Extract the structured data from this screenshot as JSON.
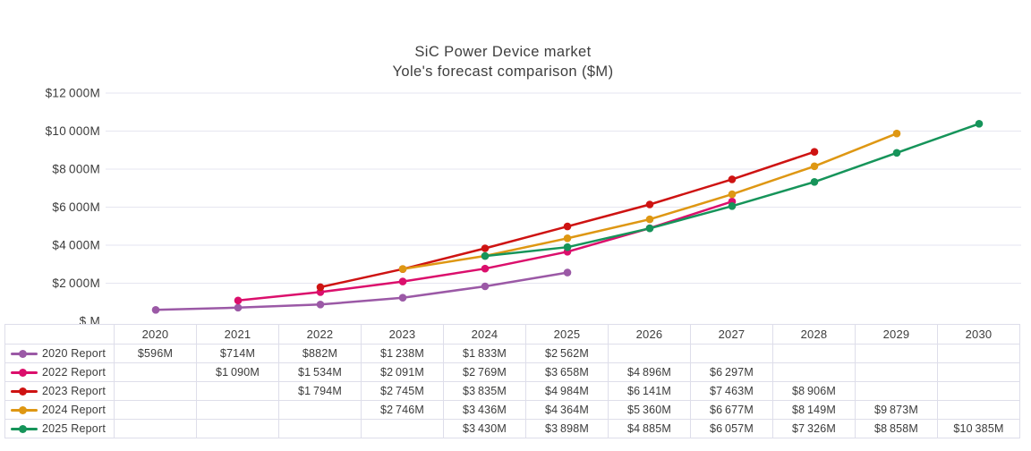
{
  "title": {
    "line1": "SiC Power Device market",
    "line2": "Yole's forecast comparison ($M)"
  },
  "chart_data": {
    "type": "line",
    "title": "SiC Power Device market — Yole's forecast comparison ($M)",
    "x": [
      2020,
      2021,
      2022,
      2023,
      2024,
      2025,
      2026,
      2027,
      2028,
      2029,
      2030
    ],
    "ylim": [
      0,
      12000
    ],
    "grid": "horizontal",
    "legend_position": "left-column-of-table",
    "yticks": [
      {
        "label": "$12 000M",
        "value": 12000
      },
      {
        "label": "$10 000M",
        "value": 10000
      },
      {
        "label": "$8 000M",
        "value": 8000
      },
      {
        "label": "$6 000M",
        "value": 6000
      },
      {
        "label": "$4 000M",
        "value": 4000
      },
      {
        "label": "$2 000M",
        "value": 2000
      },
      {
        "label": "$ M",
        "value": 0
      }
    ],
    "series": [
      {
        "name": "2020 Report",
        "color": "#9b59a6",
        "values": [
          596,
          714,
          882,
          1238,
          1833,
          2562,
          null,
          null,
          null,
          null,
          null
        ]
      },
      {
        "name": "2022 Report",
        "color": "#db0f6c",
        "values": [
          null,
          1090,
          1534,
          2091,
          2769,
          3658,
          4896,
          6297,
          null,
          null,
          null
        ]
      },
      {
        "name": "2023 Report",
        "color": "#ce1312",
        "values": [
          null,
          null,
          1794,
          2745,
          3835,
          4984,
          6141,
          7463,
          8906,
          null,
          null
        ]
      },
      {
        "name": "2024 Report",
        "color": "#de9713",
        "values": [
          null,
          null,
          null,
          2746,
          3436,
          4364,
          5360,
          6677,
          8149,
          9873,
          null
        ]
      },
      {
        "name": "2025 Report",
        "color": "#16945a",
        "values": [
          null,
          null,
          null,
          null,
          3430,
          3898,
          4885,
          6057,
          7326,
          8858,
          10385
        ]
      }
    ]
  },
  "table": {
    "columns": [
      "2020",
      "2021",
      "2022",
      "2023",
      "2024",
      "2025",
      "2026",
      "2027",
      "2028",
      "2029",
      "2030"
    ],
    "rows": [
      {
        "label": "2020 Report",
        "cells": [
          "$596M",
          "$714M",
          "$882M",
          "$1 238M",
          "$1 833M",
          "$2 562M",
          "",
          "",
          "",
          "",
          ""
        ]
      },
      {
        "label": "2022 Report",
        "cells": [
          "",
          "$1 090M",
          "$1 534M",
          "$2 091M",
          "$2 769M",
          "$3 658M",
          "$4 896M",
          "$6 297M",
          "",
          "",
          ""
        ]
      },
      {
        "label": "2023 Report",
        "cells": [
          "",
          "",
          "$1 794M",
          "$2 745M",
          "$3 835M",
          "$4 984M",
          "$6 141M",
          "$7 463M",
          "$8 906M",
          "",
          ""
        ]
      },
      {
        "label": "2024 Report",
        "cells": [
          "",
          "",
          "",
          "$2 746M",
          "$3 436M",
          "$4 364M",
          "$5 360M",
          "$6 677M",
          "$8 149M",
          "$9 873M",
          ""
        ]
      },
      {
        "label": "2025 Report",
        "cells": [
          "",
          "",
          "",
          "",
          "$3 430M",
          "$3 898M",
          "$4 885M",
          "$6 057M",
          "$7 326M",
          "$8 858M",
          "$10 385M"
        ]
      }
    ]
  },
  "style": {
    "gridline_color": "#e6e6f0",
    "table_border_color": "#dedeea",
    "text_color": "#3b3b3b"
  }
}
